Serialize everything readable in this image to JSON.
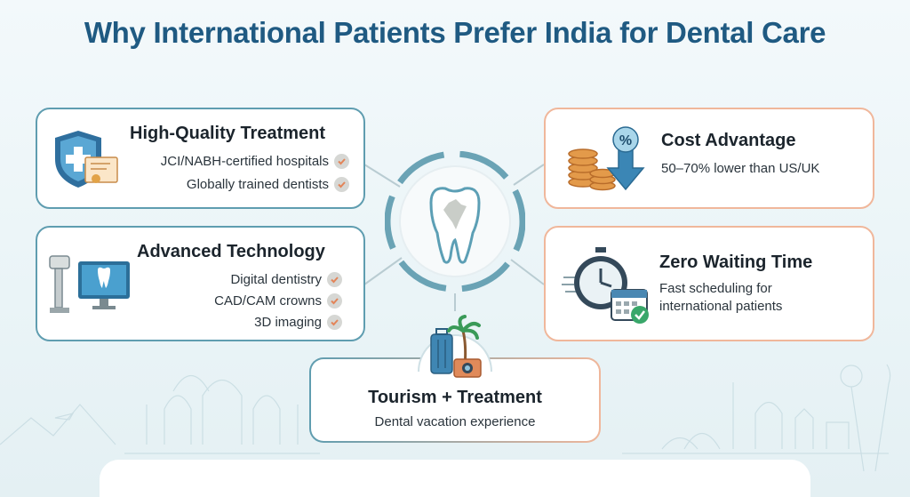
{
  "title": "Why International Patients Prefer India for Dental Care",
  "cards": {
    "quality": {
      "title": "High-Quality Treatment",
      "points": [
        "JCI/NABH-certified hospitals",
        "Globally trained dentists"
      ]
    },
    "technology": {
      "title": "Advanced Technology",
      "points": [
        "Digital dentistry",
        "CAD/CAM crowns",
        "3D imaging"
      ]
    },
    "cost": {
      "title": "Cost Advantage",
      "subtitle": "50–70% lower than US/UK"
    },
    "waiting": {
      "title": "Zero Waiting Time",
      "subtitle_lines": [
        "Fast scheduling for",
        "international patients"
      ]
    },
    "tourism": {
      "title": "Tourism + Treatment",
      "subtitle": "Dental vacation experience"
    }
  },
  "icons": {
    "quality": "shield-certificate-icon",
    "technology": "dental-xray-computer-icon",
    "cost": "coins-percent-down-icon",
    "waiting": "stopwatch-calendar-icon",
    "tourism": "luggage-palm-camera-icon",
    "hub": "tooth-india-map-icon",
    "check": "check-icon"
  },
  "colors": {
    "title": "#1f5a82",
    "teal": "#5f9db0",
    "peach": "#f0b79b",
    "check_bg": "#d6d7d4"
  }
}
